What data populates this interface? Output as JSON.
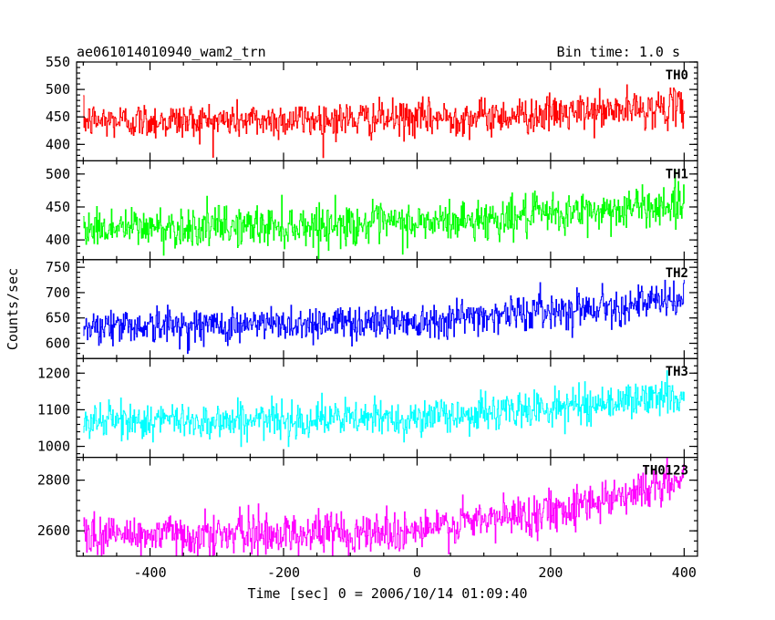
{
  "chart_data": {
    "type": "line",
    "title": "ae061014010940_wam2_trn",
    "subtitle": "Bin time: 1.0 s",
    "xlabel": "Time [sec] 0 = 2006/10/14 01:09:40",
    "ylabel": "Counts/sec",
    "xlim": [
      -510,
      420
    ],
    "x_ticks": [
      -400,
      -200,
      0,
      200,
      400
    ],
    "x_step": 1.0,
    "x_range": [
      -500,
      400
    ],
    "grid": false,
    "series": [
      {
        "name": "TH0",
        "color": "#ff0000",
        "ylim": [
          370,
          550
        ],
        "y_ticks": [
          400,
          450,
          500,
          550
        ],
        "baseline": [
          [
            -500,
            443
          ],
          [
            -300,
            443
          ],
          [
            0,
            447
          ],
          [
            200,
            455
          ],
          [
            400,
            468
          ]
        ],
        "noise_amplitude": 30
      },
      {
        "name": "TH1",
        "color": "#00ff00",
        "ylim": [
          370,
          520
        ],
        "y_ticks": [
          400,
          450,
          500
        ],
        "baseline": [
          [
            -500,
            418
          ],
          [
            -300,
            420
          ],
          [
            0,
            425
          ],
          [
            200,
            438
          ],
          [
            400,
            455
          ]
        ],
        "noise_amplitude": 28
      },
      {
        "name": "TH2",
        "color": "#0000ff",
        "ylim": [
          570,
          765
        ],
        "y_ticks": [
          600,
          650,
          700,
          750
        ],
        "baseline": [
          [
            -500,
            635
          ],
          [
            -300,
            635
          ],
          [
            0,
            645
          ],
          [
            200,
            665
          ],
          [
            400,
            685
          ]
        ],
        "noise_amplitude": 32
      },
      {
        "name": "TH3",
        "color": "#00ffff",
        "ylim": [
          970,
          1240
        ],
        "y_ticks": [
          1000,
          1100,
          1200
        ],
        "baseline": [
          [
            -500,
            1070
          ],
          [
            -300,
            1070
          ],
          [
            0,
            1078
          ],
          [
            200,
            1105
          ],
          [
            400,
            1140
          ]
        ],
        "noise_amplitude": 45
      },
      {
        "name": "TH0123",
        "color": "#ff00ff",
        "ylim": [
          2500,
          2890
        ],
        "y_ticks": [
          2600,
          2800
        ],
        "baseline": [
          [
            -500,
            2585
          ],
          [
            -300,
            2585
          ],
          [
            0,
            2600
          ],
          [
            200,
            2680
          ],
          [
            400,
            2800
          ]
        ],
        "noise_amplitude": 75
      }
    ]
  }
}
